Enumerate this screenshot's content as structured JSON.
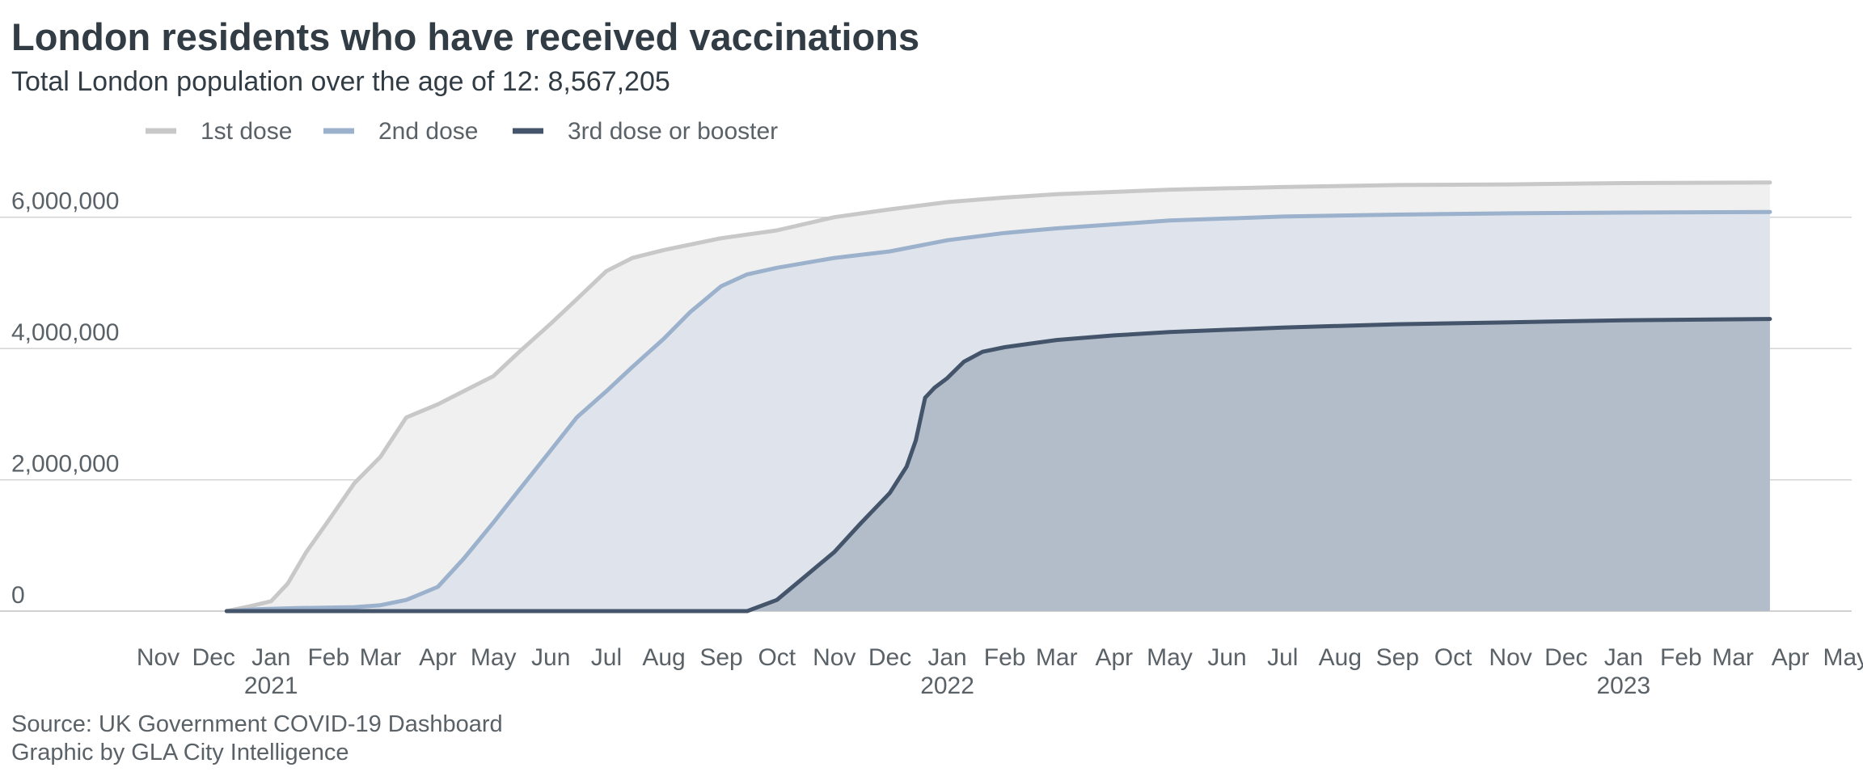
{
  "chart_data": {
    "type": "area",
    "title": "London residents who have received vaccinations",
    "subtitle": "Total London population over the age of 12: 8,567,205",
    "xlabel": "",
    "ylabel": "",
    "ylim": [
      0,
      6600000
    ],
    "y_ticks": [
      {
        "value": 0,
        "label": "0"
      },
      {
        "value": 2000000,
        "label": "2,000,000"
      },
      {
        "value": 4000000,
        "label": "4,000,000"
      },
      {
        "value": 6000000,
        "label": "6,000,000"
      }
    ],
    "x_range": [
      "2020-10-20",
      "2023-05-05"
    ],
    "month_ticks": [
      {
        "date": "2020-11-01",
        "label": "Nov"
      },
      {
        "date": "2020-12-01",
        "label": "Dec"
      },
      {
        "date": "2021-01-01",
        "label": "Jan",
        "year": "2021"
      },
      {
        "date": "2021-02-01",
        "label": "Feb"
      },
      {
        "date": "2021-03-01",
        "label": "Mar"
      },
      {
        "date": "2021-04-01",
        "label": "Apr"
      },
      {
        "date": "2021-05-01",
        "label": "May"
      },
      {
        "date": "2021-06-01",
        "label": "Jun"
      },
      {
        "date": "2021-07-01",
        "label": "Jul"
      },
      {
        "date": "2021-08-01",
        "label": "Aug"
      },
      {
        "date": "2021-09-01",
        "label": "Sep"
      },
      {
        "date": "2021-10-01",
        "label": "Oct"
      },
      {
        "date": "2021-11-01",
        "label": "Nov"
      },
      {
        "date": "2021-12-01",
        "label": "Dec"
      },
      {
        "date": "2022-01-01",
        "label": "Jan",
        "year": "2022"
      },
      {
        "date": "2022-02-01",
        "label": "Feb"
      },
      {
        "date": "2022-03-01",
        "label": "Mar"
      },
      {
        "date": "2022-04-01",
        "label": "Apr"
      },
      {
        "date": "2022-05-01",
        "label": "May"
      },
      {
        "date": "2022-06-01",
        "label": "Jun"
      },
      {
        "date": "2022-07-01",
        "label": "Jul"
      },
      {
        "date": "2022-08-01",
        "label": "Aug"
      },
      {
        "date": "2022-09-01",
        "label": "Sep"
      },
      {
        "date": "2022-10-01",
        "label": "Oct"
      },
      {
        "date": "2022-11-01",
        "label": "Nov"
      },
      {
        "date": "2022-12-01",
        "label": "Dec"
      },
      {
        "date": "2023-01-01",
        "label": "Jan",
        "year": "2023"
      },
      {
        "date": "2023-02-01",
        "label": "Feb"
      },
      {
        "date": "2023-03-01",
        "label": "Mar"
      },
      {
        "date": "2023-04-01",
        "label": "Apr"
      },
      {
        "date": "2023-05-01",
        "label": "May"
      }
    ],
    "grid": "horizontal",
    "legend_position": "top-left",
    "series": [
      {
        "name": "1st dose",
        "line_color": "#c8c8c8",
        "fill_color": "#f0f0f0",
        "points": [
          [
            "2020-12-08",
            0
          ],
          [
            "2020-12-20",
            70000
          ],
          [
            "2021-01-01",
            150000
          ],
          [
            "2021-01-10",
            420000
          ],
          [
            "2021-01-20",
            900000
          ],
          [
            "2021-02-01",
            1380000
          ],
          [
            "2021-02-15",
            1950000
          ],
          [
            "2021-03-01",
            2350000
          ],
          [
            "2021-03-15",
            2950000
          ],
          [
            "2021-04-01",
            3150000
          ],
          [
            "2021-04-15",
            3350000
          ],
          [
            "2021-05-01",
            3580000
          ],
          [
            "2021-05-15",
            3950000
          ],
          [
            "2021-06-01",
            4380000
          ],
          [
            "2021-06-15",
            4750000
          ],
          [
            "2021-07-01",
            5180000
          ],
          [
            "2021-07-15",
            5380000
          ],
          [
            "2021-08-01",
            5500000
          ],
          [
            "2021-09-01",
            5680000
          ],
          [
            "2021-10-01",
            5800000
          ],
          [
            "2021-11-01",
            6000000
          ],
          [
            "2021-12-01",
            6120000
          ],
          [
            "2022-01-01",
            6230000
          ],
          [
            "2022-02-01",
            6300000
          ],
          [
            "2022-03-01",
            6350000
          ],
          [
            "2022-05-01",
            6420000
          ],
          [
            "2022-07-01",
            6460000
          ],
          [
            "2022-09-01",
            6490000
          ],
          [
            "2022-11-01",
            6500000
          ],
          [
            "2023-01-01",
            6520000
          ],
          [
            "2023-03-21",
            6530000
          ]
        ]
      },
      {
        "name": "2nd dose",
        "line_color": "#9bb1cc",
        "fill_color": "#dfe4ec",
        "points": [
          [
            "2020-12-08",
            0
          ],
          [
            "2020-12-25",
            30000
          ],
          [
            "2021-01-15",
            45000
          ],
          [
            "2021-02-15",
            60000
          ],
          [
            "2021-03-01",
            90000
          ],
          [
            "2021-03-15",
            170000
          ],
          [
            "2021-04-01",
            370000
          ],
          [
            "2021-04-15",
            800000
          ],
          [
            "2021-05-01",
            1350000
          ],
          [
            "2021-05-15",
            1850000
          ],
          [
            "2021-06-01",
            2450000
          ],
          [
            "2021-06-15",
            2950000
          ],
          [
            "2021-07-01",
            3350000
          ],
          [
            "2021-07-15",
            3720000
          ],
          [
            "2021-08-01",
            4150000
          ],
          [
            "2021-08-15",
            4550000
          ],
          [
            "2021-09-01",
            4950000
          ],
          [
            "2021-09-15",
            5130000
          ],
          [
            "2021-10-01",
            5230000
          ],
          [
            "2021-11-01",
            5380000
          ],
          [
            "2021-12-01",
            5480000
          ],
          [
            "2022-01-01",
            5650000
          ],
          [
            "2022-02-01",
            5760000
          ],
          [
            "2022-03-01",
            5830000
          ],
          [
            "2022-05-01",
            5950000
          ],
          [
            "2022-07-01",
            6010000
          ],
          [
            "2022-09-01",
            6040000
          ],
          [
            "2022-11-01",
            6060000
          ],
          [
            "2023-01-01",
            6070000
          ],
          [
            "2023-03-21",
            6080000
          ]
        ]
      },
      {
        "name": "3rd dose or booster",
        "line_color": "#44546a",
        "fill_color": "#b3bdca",
        "points": [
          [
            "2020-12-08",
            0
          ],
          [
            "2021-09-15",
            0
          ],
          [
            "2021-10-01",
            170000
          ],
          [
            "2021-10-15",
            500000
          ],
          [
            "2021-11-01",
            900000
          ],
          [
            "2021-11-15",
            1330000
          ],
          [
            "2021-12-01",
            1800000
          ],
          [
            "2021-12-10",
            2200000
          ],
          [
            "2021-12-15",
            2600000
          ],
          [
            "2021-12-20",
            3250000
          ],
          [
            "2021-12-25",
            3400000
          ],
          [
            "2022-01-01",
            3550000
          ],
          [
            "2022-01-10",
            3800000
          ],
          [
            "2022-01-20",
            3950000
          ],
          [
            "2022-02-01",
            4020000
          ],
          [
            "2022-03-01",
            4130000
          ],
          [
            "2022-04-01",
            4200000
          ],
          [
            "2022-05-01",
            4250000
          ],
          [
            "2022-07-01",
            4320000
          ],
          [
            "2022-09-01",
            4370000
          ],
          [
            "2022-11-01",
            4400000
          ],
          [
            "2023-01-01",
            4430000
          ],
          [
            "2023-03-21",
            4450000
          ]
        ]
      }
    ],
    "source_lines": [
      "Source: UK Government COVID-19 Dashboard",
      "Graphic by GLA City Intelligence"
    ]
  }
}
